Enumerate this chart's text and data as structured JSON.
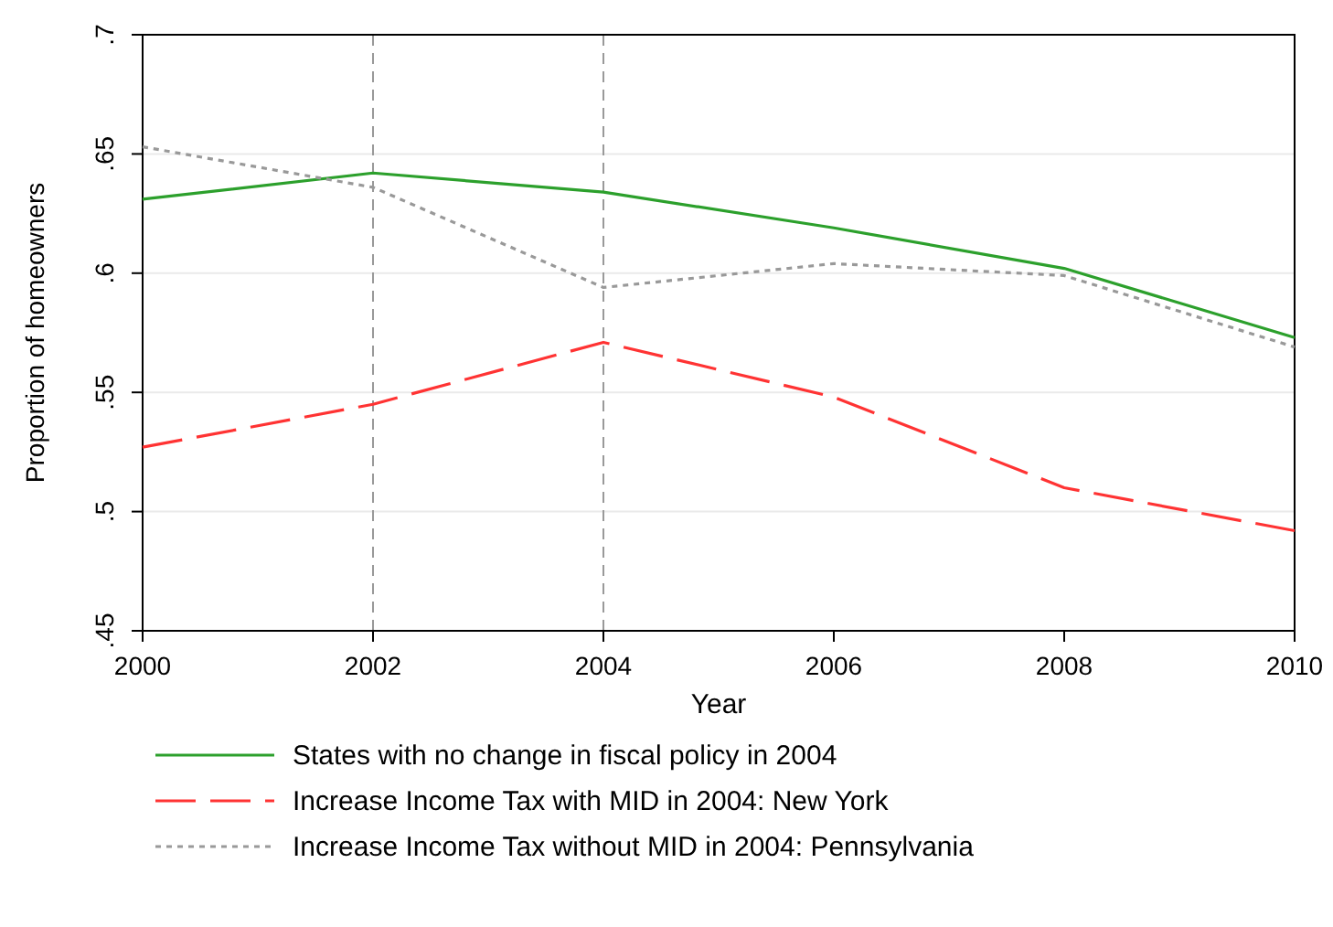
{
  "chart_data": {
    "type": "line",
    "xlabel": "Year",
    "ylabel": "Proportion of homeowners",
    "x": [
      2000,
      2002,
      2004,
      2006,
      2008,
      2010
    ],
    "xlim": [
      2000,
      2010
    ],
    "xticks": [
      2000,
      2002,
      2004,
      2006,
      2008,
      2010
    ],
    "ylim": [
      0.45,
      0.7
    ],
    "yticks": [
      {
        "value": 0.45,
        "label": ".45"
      },
      {
        "value": 0.5,
        "label": ".5"
      },
      {
        "value": 0.55,
        "label": ".55"
      },
      {
        "value": 0.6,
        "label": ".6"
      },
      {
        "value": 0.65,
        "label": ".65"
      },
      {
        "value": 0.7,
        "label": ".7"
      }
    ],
    "grid": "y",
    "legend": "bottom",
    "ref_lines": [
      {
        "axis": "x",
        "value": 2002,
        "color": "#999999",
        "line_style": "dashed"
      },
      {
        "axis": "x",
        "value": 2004,
        "color": "#999999",
        "line_style": "dashed"
      }
    ],
    "series": [
      {
        "name": "States with no change in fiscal policy in 2004",
        "color": "#2ca02c",
        "line_style": "solid",
        "values": [
          0.631,
          0.642,
          0.634,
          0.619,
          0.602,
          0.573
        ]
      },
      {
        "name": "Increase Income Tax with MID in 2004: New York",
        "color": "#ff3333",
        "line_style": "dashed",
        "values": [
          0.527,
          0.545,
          0.571,
          0.548,
          0.51,
          0.492
        ]
      },
      {
        "name": "Increase Income Tax without MID in 2004: Pennsylvania",
        "color": "#999999",
        "line_style": "dotted",
        "values": [
          0.653,
          0.636,
          0.594,
          0.604,
          0.599,
          0.569
        ]
      }
    ]
  }
}
